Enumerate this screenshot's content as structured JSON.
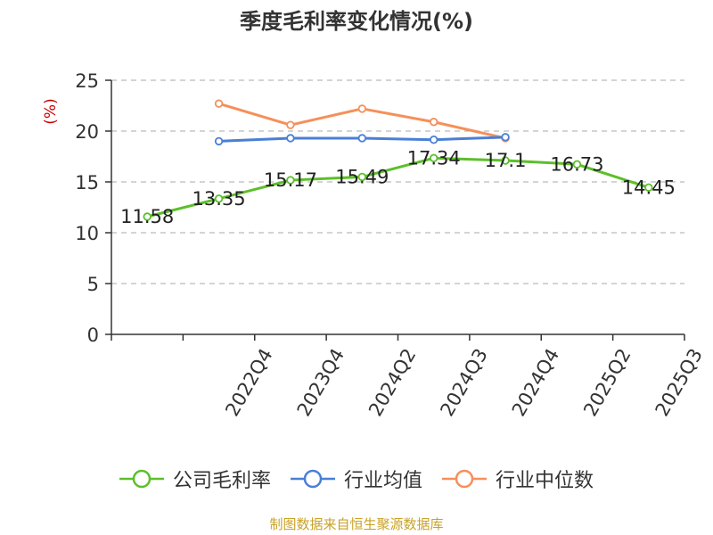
{
  "chart_data": {
    "type": "line",
    "title": "季度毛利率变化情况(%)",
    "ylabel": "(%)",
    "ylim": [
      0,
      25
    ],
    "yticks": [
      0,
      5,
      10,
      15,
      20,
      25
    ],
    "grid": true,
    "legend_position": "bottom",
    "categories": [
      "",
      "2022Q4",
      "2023Q4",
      "2024Q2",
      "2024Q3",
      "2024Q4",
      "2025Q2",
      "2025Q3"
    ],
    "series": [
      {
        "name": "公司毛利率",
        "color": "#5cbf2a",
        "values": [
          11.58,
          13.35,
          15.17,
          15.49,
          17.34,
          17.1,
          16.73,
          14.45
        ],
        "labels": [
          "11.58",
          "13.35",
          "15.17",
          "15.49",
          "17.34",
          "17.1",
          "16.73",
          "14.45"
        ]
      },
      {
        "name": "行业均值",
        "color": "#4a7fd6",
        "values": [
          null,
          19.0,
          19.3,
          19.3,
          19.15,
          19.4,
          null,
          null
        ]
      },
      {
        "name": "行业中位数",
        "color": "#f5905a",
        "values": [
          null,
          22.7,
          20.6,
          22.2,
          20.9,
          19.3,
          null,
          null
        ]
      }
    ]
  },
  "source": {
    "text": "制图数据来自恒生聚源数据库",
    "color": "#c9a227"
  },
  "colors": {
    "axis": "#333333",
    "grid": "#bbbbbb",
    "ylabel": "#cc0000"
  }
}
